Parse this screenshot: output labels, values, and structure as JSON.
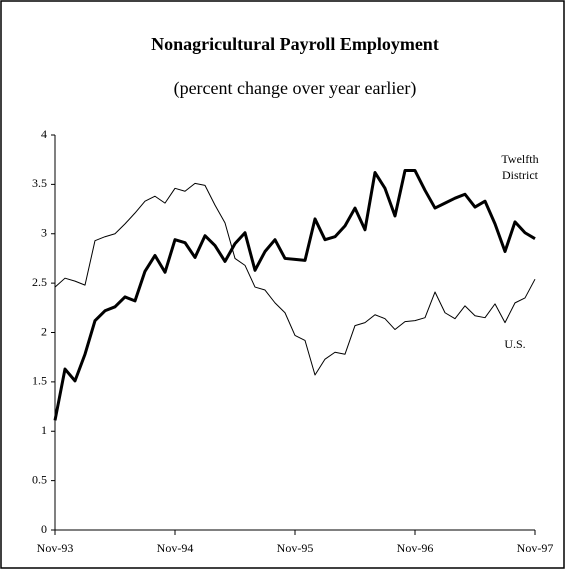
{
  "chart_data": {
    "type": "line",
    "title": "Nonagricultural Payroll Employment",
    "subtitle": "(percent change over year earlier)",
    "categories": [
      "Nov-93",
      null,
      null,
      null,
      null,
      null,
      null,
      null,
      null,
      null,
      null,
      null,
      "Nov-94",
      null,
      null,
      null,
      null,
      null,
      null,
      null,
      null,
      null,
      null,
      null,
      "Nov-95",
      null,
      null,
      null,
      null,
      null,
      null,
      null,
      null,
      null,
      null,
      null,
      "Nov-96",
      null,
      null,
      null,
      null,
      null,
      null,
      null,
      null,
      null,
      null,
      null,
      "Nov-97"
    ],
    "series": [
      {
        "name": "Twelfth District",
        "color": "#000000",
        "width": 3,
        "values": [
          1.11,
          1.63,
          1.51,
          1.78,
          2.12,
          2.22,
          2.26,
          2.36,
          2.32,
          2.62,
          2.78,
          2.61,
          2.94,
          2.91,
          2.76,
          2.98,
          2.88,
          2.72,
          2.9,
          3.01,
          2.63,
          2.82,
          2.94,
          2.75,
          2.74,
          2.73,
          3.15,
          2.94,
          2.97,
          3.08,
          3.26,
          3.04,
          3.62,
          3.46,
          3.18,
          3.64,
          3.64,
          3.44,
          3.26,
          3.31,
          3.36,
          3.4,
          3.27,
          3.33,
          3.1,
          2.82,
          3.12,
          3.01,
          2.95
        ]
      },
      {
        "name": "U.S.",
        "color": "#000000",
        "width": 1,
        "values": [
          2.46,
          2.55,
          2.52,
          2.48,
          2.93,
          2.97,
          3.0,
          3.1,
          3.21,
          3.33,
          3.38,
          3.31,
          3.46,
          3.43,
          3.51,
          3.49,
          3.29,
          3.11,
          2.75,
          2.68,
          2.46,
          2.43,
          2.3,
          2.2,
          1.97,
          1.92,
          1.57,
          1.73,
          1.8,
          1.78,
          2.07,
          2.1,
          2.18,
          2.14,
          2.03,
          2.11,
          2.12,
          2.15,
          2.41,
          2.2,
          2.14,
          2.27,
          2.17,
          2.15,
          2.29,
          2.1,
          2.3,
          2.35,
          2.54
        ]
      }
    ],
    "ylim": [
      0,
      4
    ],
    "yticks": [
      0,
      0.5,
      1,
      1.5,
      2,
      2.5,
      3,
      3.5,
      4
    ],
    "grid": false
  }
}
